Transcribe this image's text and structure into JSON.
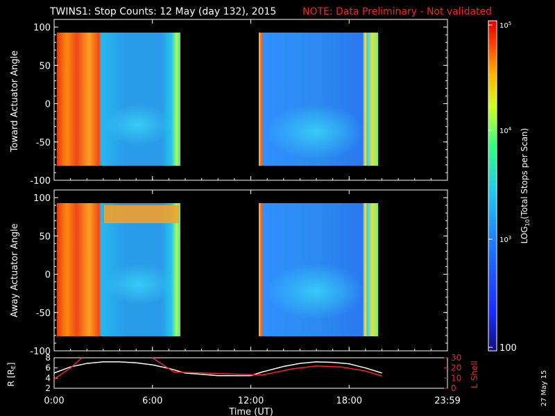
{
  "title": "TWINS1: Stop Counts: 12 May (day 132), 2015",
  "note": "NOTE: Data Preliminary - Not validated",
  "date_stamp": "27 May 15",
  "colors": {
    "note": "#ff2020",
    "ephem_r": "#ffffff",
    "ephem_lshell": "#ff2020",
    "frame": "#ffffff",
    "background": "#000000"
  },
  "chart_data": [
    {
      "type": "heatmap",
      "ylabel": "Toward Actuator Angle",
      "ylim": [
        -100,
        110
      ],
      "yticks": [
        "100",
        "50",
        "0",
        "-50",
        "-100"
      ],
      "xlim_hours": [
        0,
        24
      ],
      "data_blocks": [
        {
          "start_h": 0.0,
          "end_h": 7.7,
          "angle_range": [
            -88,
            88
          ]
        },
        {
          "start_h": 12.7,
          "end_h": 20.0,
          "angle_range": [
            -88,
            88
          ]
        }
      ]
    },
    {
      "type": "heatmap",
      "ylabel": "Away Actuator Angle",
      "ylim": [
        -100,
        110
      ],
      "yticks": [
        "100",
        "50",
        "0",
        "-50",
        "-100"
      ],
      "xlim_hours": [
        0,
        24
      ],
      "data_blocks": [
        {
          "start_h": 0.0,
          "end_h": 7.7,
          "angle_range": [
            -88,
            88
          ]
        },
        {
          "start_h": 12.7,
          "end_h": 20.0,
          "angle_range": [
            -88,
            88
          ]
        }
      ]
    },
    {
      "type": "line",
      "xlabel": "Time (UT)",
      "xticks": [
        "0:00",
        "6:00",
        "12:00",
        "18:00",
        "23:59"
      ],
      "ylabel_left": "R [RE]",
      "ylim_left": [
        2,
        8
      ],
      "yticks_left": [
        "8",
        "6",
        "4",
        "2"
      ],
      "ylabel_right": "L Shell",
      "ylim_right": [
        0,
        30
      ],
      "yticks_right": [
        "30",
        "20",
        "10",
        "0"
      ],
      "series": [
        {
          "x": [
            0,
            1,
            2,
            3,
            4,
            5,
            6,
            7,
            8,
            10,
            12,
            12.7,
            14,
            15,
            16,
            17,
            18,
            19,
            20
          ],
          "y": [
            5.0,
            6.2,
            6.9,
            7.2,
            7.2,
            7.0,
            6.6,
            5.9,
            5.0,
            4.5,
            4.5,
            5.2,
            6.3,
            6.9,
            7.2,
            7.1,
            6.8,
            6.0,
            5.0
          ]
        },
        {
          "x": [
            0,
            1,
            1.7,
            6,
            7.3,
            12.7,
            14.5,
            16,
            17.5,
            19,
            20
          ],
          "y": [
            9,
            20,
            30,
            30,
            16,
            13,
            19,
            22,
            21,
            17,
            12
          ]
        }
      ]
    },
    {
      "type": "heatmap",
      "ylabel": "LOG10(Total Stops per Scan)",
      "tick_labels": [
        "10^5",
        "10^4",
        "10^3",
        "100"
      ],
      "colormap": "rainbow"
    }
  ]
}
